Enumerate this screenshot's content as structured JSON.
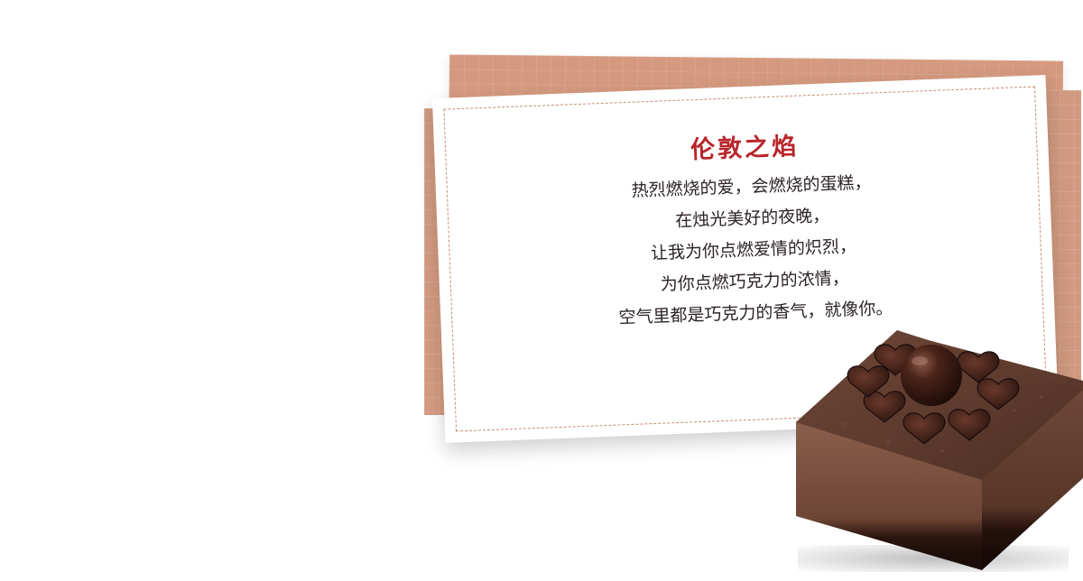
{
  "card": {
    "title": "伦敦之焰",
    "poem_lines": [
      "热烈燃烧的爱，会燃烧的蛋糕，",
      "在烛光美好的夜晚，",
      "让我为你点燃爱情的炽烈，",
      "为你点燃巧克力的浓情，",
      "空气里都是巧克力的香气，就像你。"
    ]
  },
  "colors": {
    "title": "#b8252b",
    "card_brown": "#d4997e",
    "border_dash": "#c98a77",
    "chocolate_dark": "#3e1f16",
    "chocolate_mousse": "#7a5142"
  }
}
